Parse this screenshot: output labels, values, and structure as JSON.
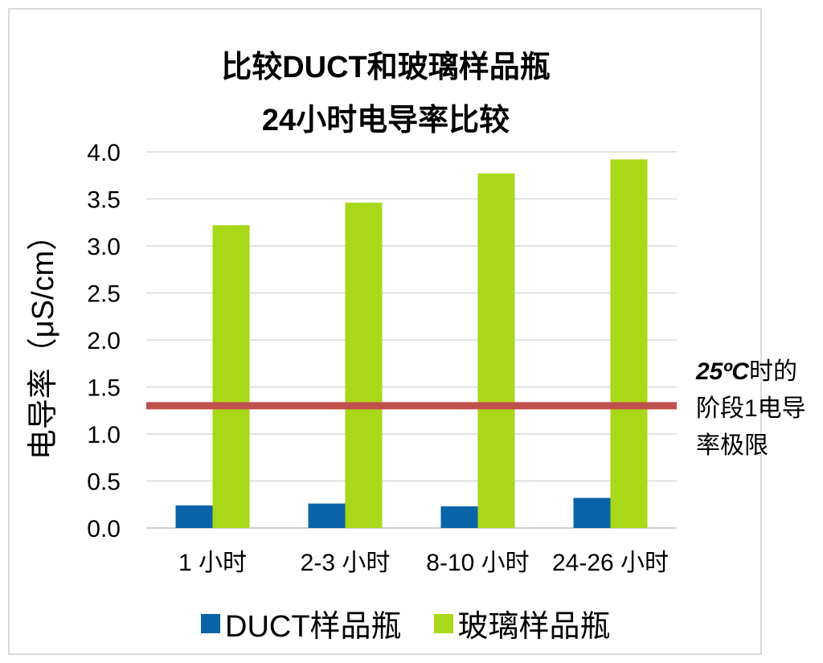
{
  "chart_data": {
    "type": "bar",
    "title": "比较DUCT和玻璃样品瓶",
    "subtitle": "24小时电导率比较",
    "ylabel": "电导率（μS/cm）",
    "xlabel": "",
    "ylim": [
      0,
      4.0
    ],
    "yticks": [
      "0.0",
      "0.5",
      "1.0",
      "1.5",
      "2.0",
      "2.5",
      "3.0",
      "3.5",
      "4.0"
    ],
    "grid": true,
    "legend_position": "bottom",
    "categories": [
      "1 小时",
      "2-3 小时",
      "8-10 小时",
      "24-26 小时"
    ],
    "series": [
      {
        "name": "DUCT样品瓶",
        "color": "#0a64a8",
        "values": [
          0.24,
          0.26,
          0.23,
          0.32
        ]
      },
      {
        "name": "玻璃样品瓶",
        "color": "#a8d818",
        "values": [
          3.22,
          3.46,
          3.77,
          3.92
        ]
      }
    ],
    "reference_line": {
      "value": 1.3,
      "color": "#c0504d",
      "label_strong": "25ºC",
      "label_rest": "时的",
      "label_line2": "阶段1电导",
      "label_line3": "率极限"
    }
  }
}
